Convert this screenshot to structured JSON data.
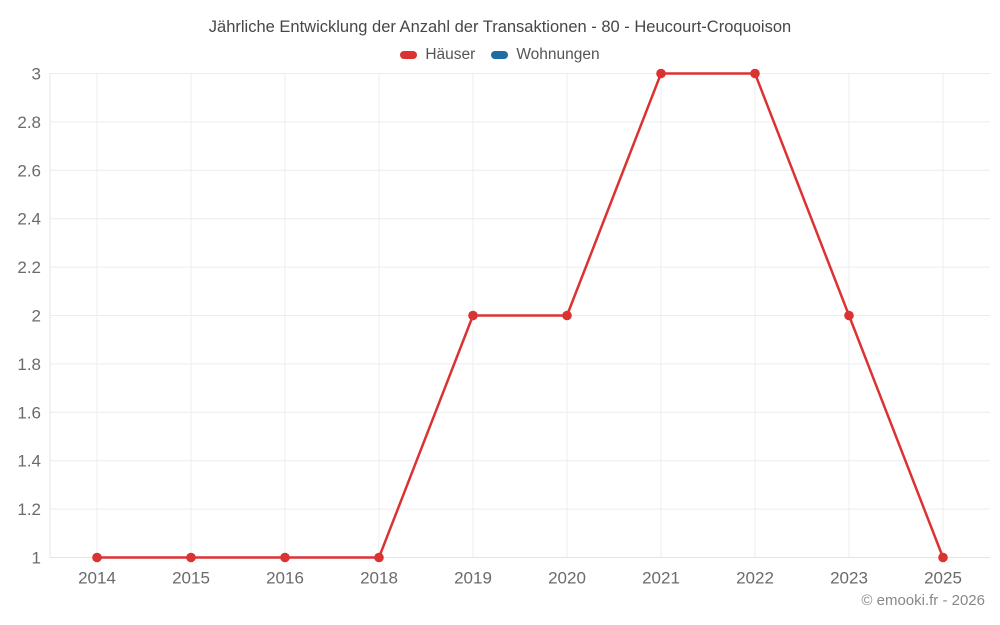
{
  "chart_data": {
    "type": "line",
    "title": "Jährliche Entwicklung der Anzahl der Transaktionen - 80 - Heucourt-Croquoison",
    "categories": [
      "2014",
      "2015",
      "2016",
      "2018",
      "2019",
      "2020",
      "2021",
      "2022",
      "2023",
      "2025"
    ],
    "series": [
      {
        "name": "Häuser",
        "color": "#db3232",
        "values": [
          1,
          1,
          1,
          1,
          2,
          2,
          3,
          3,
          2,
          1
        ]
      },
      {
        "name": "Wohnungen",
        "color": "#1c6ea4",
        "values": []
      }
    ],
    "xlabel": "",
    "ylabel": "",
    "ylim": [
      1,
      3
    ],
    "ytick_step": 0.2,
    "ytick_labels": [
      "1",
      "1.2",
      "1.4",
      "1.6",
      "1.8",
      "2",
      "2.2",
      "2.4",
      "2.6",
      "2.8",
      "3"
    ],
    "grid": true,
    "legend_position": "top",
    "marker": "circle"
  },
  "credits": "© emooki.fr - 2026",
  "colors": {
    "grid": "#ececec",
    "axis": "#e4e4e4",
    "tick_label": "#6b6b6b",
    "title": "#474747",
    "legend_text": "#555555",
    "credits_text": "#888888"
  }
}
